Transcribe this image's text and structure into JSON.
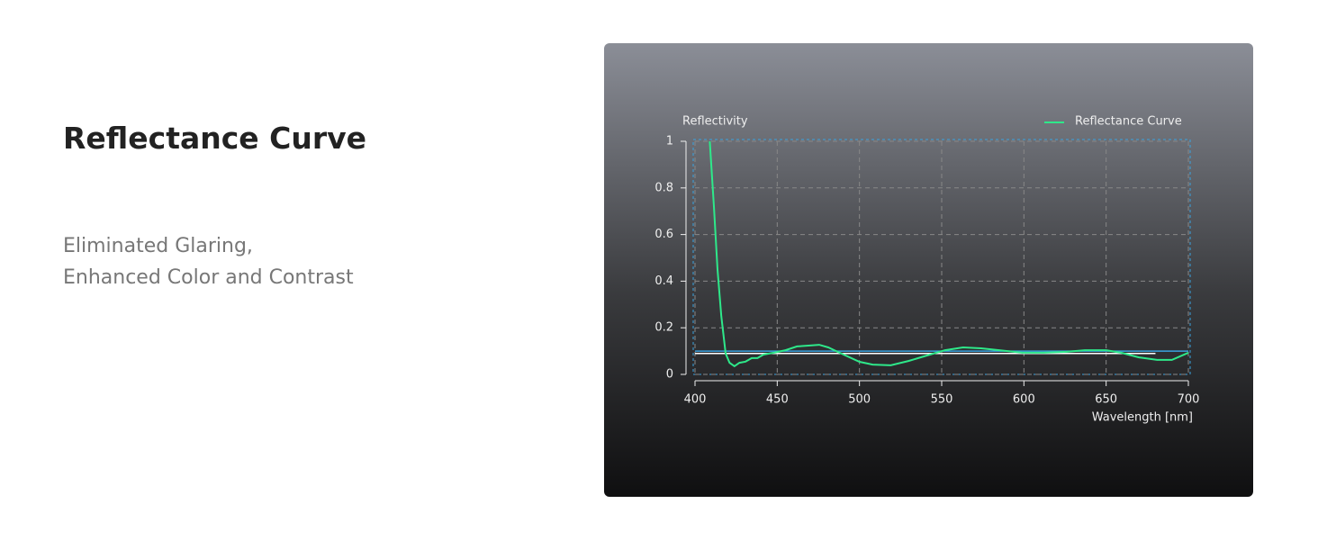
{
  "heading": "Reflectance Curve",
  "description": [
    "Eliminated Glaring,",
    "Enhanced Color and Contrast"
  ],
  "chart_data": {
    "type": "line",
    "y_label": "Reflectivity",
    "x_label": "Wavelength [nm]",
    "xlim": [
      400,
      700
    ],
    "xticks": [
      400,
      450,
      500,
      550,
      600,
      650,
      700
    ],
    "ylim": [
      0,
      1
    ],
    "yticks": [
      0,
      0.2,
      0.4,
      0.6,
      0.8,
      1
    ],
    "grid": true,
    "legend": "top-right",
    "reference_lines": [
      {
        "y": 0.09,
        "x": [
          400,
          680
        ],
        "color": "#ffffff"
      },
      {
        "y": 0.1,
        "x": [
          400,
          700
        ],
        "color": "#3aa3e0"
      }
    ],
    "series": [
      {
        "name": "Reflectance Curve",
        "color": "#2ee88a",
        "x": [
          409,
          411.5,
          413.7,
          416,
          418.6,
          421,
          424,
          427,
          430.7,
          434.5,
          438,
          441.6,
          448,
          455,
          462,
          470,
          475.5,
          481,
          489,
          500,
          508,
          519,
          530,
          541,
          552,
          563,
          574,
          585,
          599,
          612,
          626,
          637,
          650,
          659,
          670,
          681,
          690,
          700
        ],
        "values": [
          1.0,
          0.72,
          0.45,
          0.25,
          0.09,
          0.05,
          0.035,
          0.05,
          0.055,
          0.07,
          0.07,
          0.085,
          0.093,
          0.104,
          0.12,
          0.124,
          0.127,
          0.116,
          0.089,
          0.054,
          0.042,
          0.039,
          0.058,
          0.081,
          0.104,
          0.116,
          0.112,
          0.104,
          0.093,
          0.093,
          0.097,
          0.104,
          0.104,
          0.093,
          0.073,
          0.062,
          0.062,
          0.093
        ]
      }
    ]
  }
}
